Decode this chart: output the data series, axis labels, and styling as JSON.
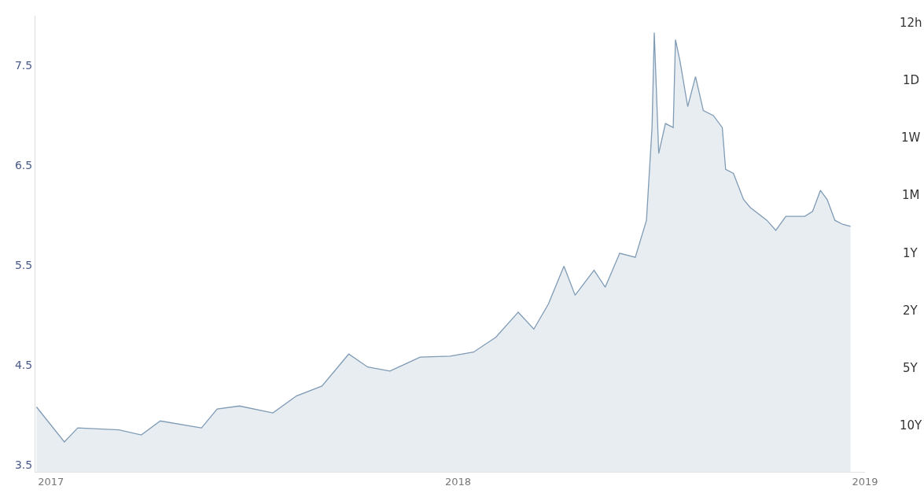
{
  "chart_data": {
    "type": "area",
    "x": [
      "2016-12-19",
      "2017-01-13",
      "2017-01-25",
      "2017-03-03",
      "2017-03-23",
      "2017-04-09",
      "2017-05-16",
      "2017-05-30",
      "2017-06-19",
      "2017-07-19",
      "2017-08-09",
      "2017-09-01",
      "2017-09-25",
      "2017-10-12",
      "2017-11-01",
      "2017-11-28",
      "2017-12-25",
      "2018-01-15",
      "2018-02-04",
      "2018-02-24",
      "2018-03-10",
      "2018-03-23",
      "2018-04-06",
      "2018-04-16",
      "2018-05-03",
      "2018-05-13",
      "2018-05-26",
      "2018-06-09",
      "2018-06-19",
      "2018-06-24",
      "2018-06-26",
      "2018-06-30",
      "2018-07-06",
      "2018-07-13",
      "2018-07-15",
      "2018-07-19",
      "2018-07-26",
      "2018-08-02",
      "2018-08-09",
      "2018-08-18",
      "2018-08-26",
      "2018-08-29",
      "2018-09-05",
      "2018-09-14",
      "2018-09-20",
      "2018-10-05",
      "2018-10-13",
      "2018-10-22",
      "2018-11-08",
      "2018-11-15",
      "2018-11-22",
      "2018-11-28",
      "2018-12-05",
      "2018-12-12",
      "2018-12-19"
    ],
    "series": [
      {
        "color": "#7f9bb5",
        "values": [
          4.08,
          3.73,
          3.87,
          3.85,
          3.8,
          3.94,
          3.87,
          4.06,
          4.09,
          4.02,
          4.19,
          4.29,
          4.61,
          4.48,
          4.44,
          4.58,
          4.59,
          4.63,
          4.78,
          5.03,
          4.86,
          5.11,
          5.49,
          5.2,
          5.45,
          5.28,
          5.62,
          5.58,
          5.95,
          6.88,
          7.83,
          6.62,
          6.92,
          6.88,
          7.76,
          7.55,
          7.09,
          7.39,
          7.05,
          7.0,
          6.88,
          6.46,
          6.42,
          6.16,
          6.08,
          5.95,
          5.85,
          5.99,
          5.99,
          6.04,
          6.25,
          6.16,
          5.95,
          5.91,
          5.89
        ]
      }
    ],
    "xlim": [
      "2016-12-18",
      "2019-01-01"
    ],
    "xticks": [
      {
        "value": "2017-01-01",
        "label": "2017"
      },
      {
        "value": "2018-01-01",
        "label": "2018"
      },
      {
        "value": "2019-01-01",
        "label": "2019"
      }
    ],
    "ylim": [
      3.43,
      8.0
    ],
    "yticks": [
      3.5,
      4.5,
      5.5,
      6.5,
      7.5
    ],
    "annotations": [
      "12h",
      "1D",
      "1W",
      "1M",
      "1Y",
      "2Y",
      "5Y",
      "10Y"
    ]
  }
}
